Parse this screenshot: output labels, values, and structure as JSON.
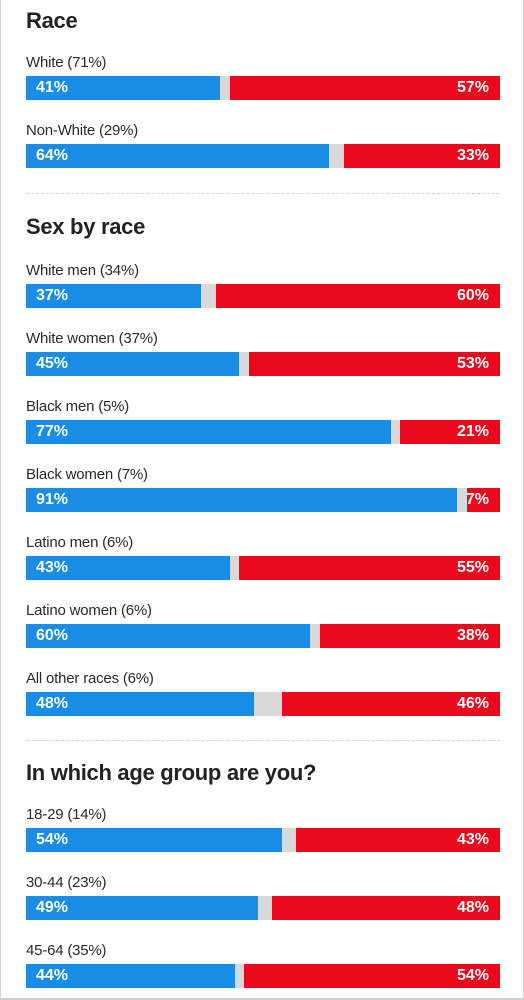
{
  "colors": {
    "dem": "#1a8de6",
    "rep": "#e9081c",
    "other": "#d9d9d9"
  },
  "chart_data": [
    {
      "type": "bar",
      "title": "Race",
      "categories": [
        "White (71%)",
        "Non-White (29%)"
      ],
      "series": [
        {
          "values": [
            41,
            64
          ]
        },
        {
          "values": [
            57,
            33
          ]
        }
      ],
      "ylim": [
        0,
        100
      ]
    },
    {
      "type": "bar",
      "title": "Sex by race",
      "categories": [
        "White men (34%)",
        "White women (37%)",
        "Black men (5%)",
        "Black women (7%)",
        "Latino men (6%)",
        "Latino women (6%)",
        "All other races (6%)"
      ],
      "series": [
        {
          "values": [
            37,
            45,
            77,
            91,
            43,
            60,
            48
          ]
        },
        {
          "values": [
            60,
            53,
            21,
            7,
            55,
            38,
            46
          ]
        }
      ],
      "ylim": [
        0,
        100
      ]
    },
    {
      "type": "bar",
      "title": "In which age group are you?",
      "categories": [
        "18-29 (14%)",
        "30-44 (23%)",
        "45-64 (35%)"
      ],
      "series": [
        {
          "values": [
            54,
            49,
            44
          ]
        },
        {
          "values": [
            43,
            48,
            54
          ]
        }
      ],
      "ylim": [
        0,
        100
      ]
    }
  ]
}
